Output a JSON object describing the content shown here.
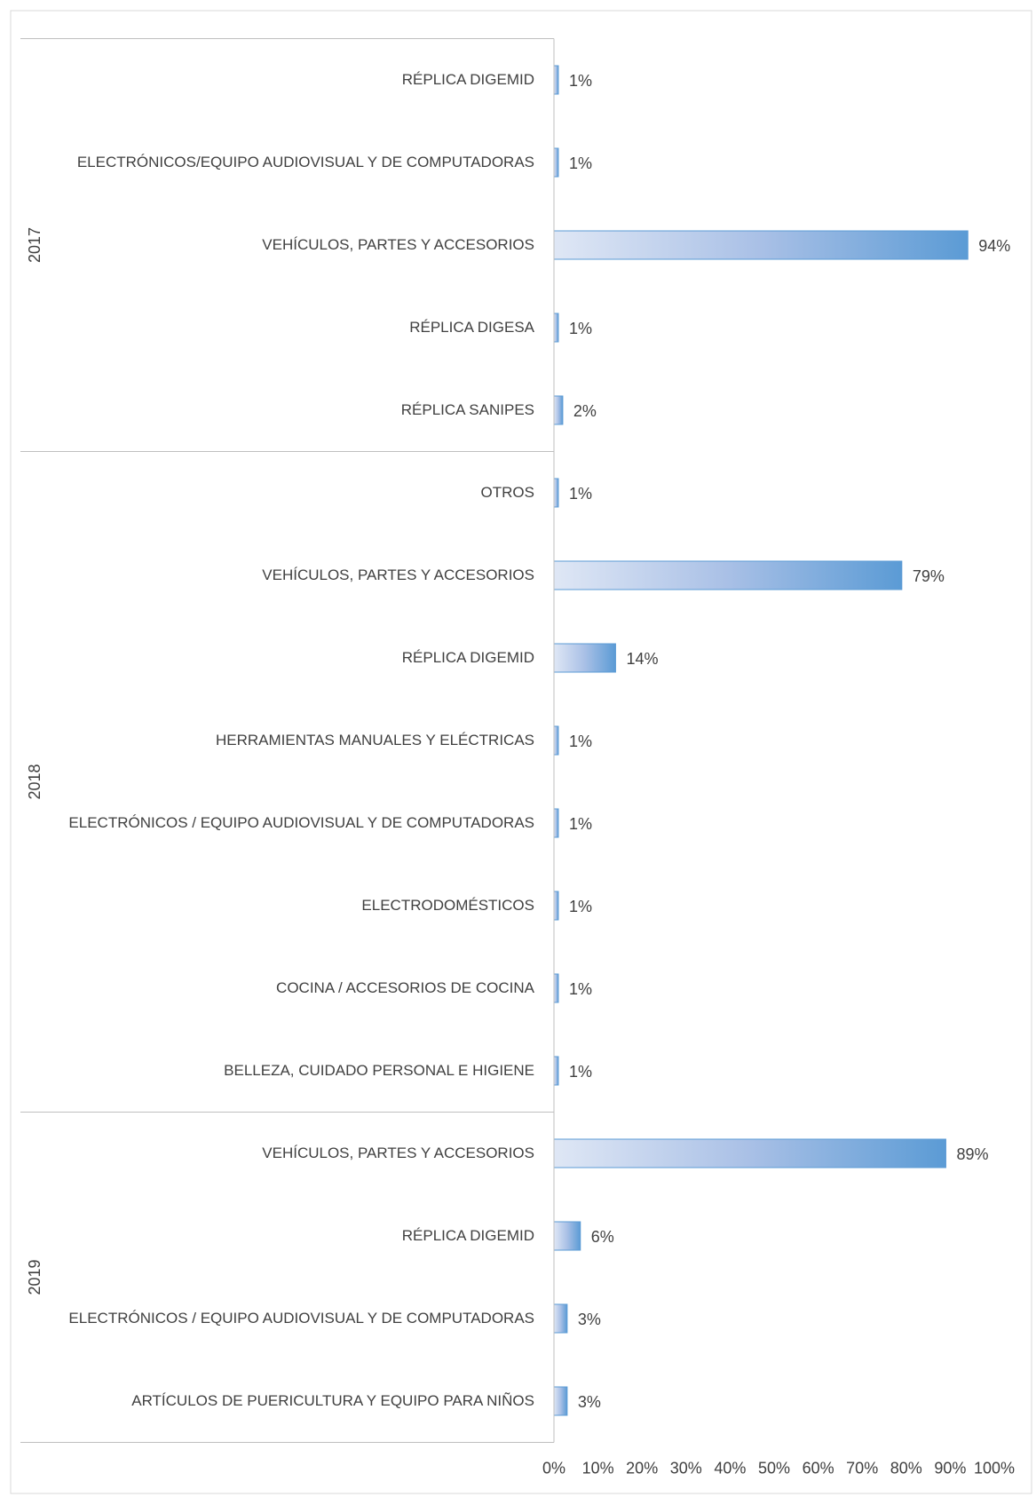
{
  "chart_data": {
    "type": "bar",
    "orientation": "horizontal",
    "color": "#5b9bd5",
    "groups": [
      {
        "name": "2017",
        "categories": [
          "RÉPLICA DIGEMID",
          "ELECTRÓNICOS/EQUIPO AUDIOVISUAL Y DE COMPUTADORAS",
          "VEHÍCULOS, PARTES Y ACCESORIOS",
          "RÉPLICA DIGESA",
          "RÉPLICA SANIPES"
        ],
        "values": [
          1,
          1,
          94,
          1,
          2
        ],
        "value_labels": [
          "1%",
          "1%",
          "94%",
          "1%",
          "2%"
        ]
      },
      {
        "name": "2018",
        "categories": [
          "OTROS",
          "VEHÍCULOS, PARTES Y ACCESORIOS",
          "RÉPLICA DIGEMID",
          "HERRAMIENTAS MANUALES Y ELÉCTRICAS",
          "ELECTRÓNICOS / EQUIPO AUDIOVISUAL Y DE COMPUTADORAS",
          "ELECTRODOMÉSTICOS",
          "COCINA / ACCESORIOS DE COCINA",
          "BELLEZA, CUIDADO PERSONAL E HIGIENE"
        ],
        "values": [
          1,
          79,
          14,
          1,
          1,
          1,
          1,
          1
        ],
        "value_labels": [
          "1%",
          "79%",
          "14%",
          "1%",
          "1%",
          "1%",
          "1%",
          "1%"
        ]
      },
      {
        "name": "2019",
        "categories": [
          "VEHÍCULOS, PARTES Y ACCESORIOS",
          "RÉPLICA DIGEMID",
          "ELECTRÓNICOS / EQUIPO AUDIOVISUAL Y DE COMPUTADORAS",
          "ARTÍCULOS DE PUERICULTURA Y EQUIPO PARA NIÑOS"
        ],
        "values": [
          89,
          6,
          3,
          3
        ],
        "value_labels": [
          "89%",
          "6%",
          "3%",
          "3%"
        ]
      }
    ],
    "xlim": [
      0,
      100
    ],
    "xticks": [
      {
        "value": 0,
        "label": "0%"
      },
      {
        "value": 10,
        "label": "10%"
      },
      {
        "value": 20,
        "label": "20%"
      },
      {
        "value": 30,
        "label": "30%"
      },
      {
        "value": 40,
        "label": "40%"
      },
      {
        "value": 50,
        "label": "50%"
      },
      {
        "value": 60,
        "label": "60%"
      },
      {
        "value": 70,
        "label": "70%"
      },
      {
        "value": 80,
        "label": "80%"
      },
      {
        "value": 90,
        "label": "90%"
      },
      {
        "value": 100,
        "label": "100%"
      }
    ]
  }
}
